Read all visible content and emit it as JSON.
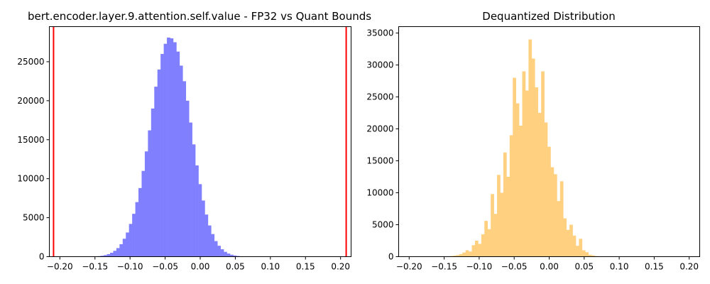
{
  "chart_data": [
    {
      "type": "histogram",
      "title": "bert.encoder.layer.9.attention.self.value - FP32 vs Quant Bounds",
      "xlabel": "",
      "ylabel": "",
      "xlim": [
        -0.215,
        0.215
      ],
      "ylim": [
        0,
        29500
      ],
      "xticks": [
        -0.2,
        -0.15,
        -0.1,
        -0.05,
        0.0,
        0.05,
        0.1,
        0.15,
        0.2
      ],
      "xtick_labels": [
        "−0.20",
        "−0.15",
        "−0.10",
        "−0.05",
        "0.00",
        "0.05",
        "0.10",
        "0.15",
        "0.20"
      ],
      "yticks": [
        0,
        5000,
        10000,
        15000,
        20000,
        25000
      ],
      "ytick_labels": [
        "0",
        "5000",
        "10000",
        "15000",
        "20000",
        "25000"
      ],
      "bar_color": "#8080ff",
      "bin_start": -0.16,
      "bin_width": 0.0045,
      "values": [
        10,
        20,
        40,
        70,
        120,
        200,
        320,
        500,
        750,
        1100,
        1600,
        2300,
        3100,
        4200,
        5500,
        7000,
        8800,
        11000,
        13500,
        16200,
        19000,
        21800,
        24000,
        26000,
        27300,
        28100,
        28000,
        27500,
        26300,
        24500,
        22500,
        20000,
        17200,
        14400,
        11700,
        9300,
        7200,
        5400,
        4000,
        2900,
        2000,
        1400,
        950,
        620,
        400,
        250,
        150,
        90,
        50,
        30,
        15,
        8
      ],
      "bound_lines": [
        -0.209,
        0.208
      ],
      "bound_color": "#ff0000"
    },
    {
      "type": "histogram",
      "title": "Dequantized Distribution",
      "xlabel": "",
      "ylabel": "",
      "xlim": [
        -0.215,
        0.215
      ],
      "ylim": [
        0,
        36000
      ],
      "xticks": [
        -0.2,
        -0.15,
        -0.1,
        -0.05,
        0.0,
        0.05,
        0.1,
        0.15,
        0.2
      ],
      "xtick_labels": [
        "−0.20",
        "−0.15",
        "−0.10",
        "−0.05",
        "0.00",
        "0.05",
        "0.10",
        "0.15",
        "0.20"
      ],
      "yticks": [
        0,
        5000,
        10000,
        15000,
        20000,
        25000,
        30000,
        35000
      ],
      "ytick_labels": [
        "0",
        "5000",
        "10000",
        "15000",
        "20000",
        "25000",
        "30000",
        "35000"
      ],
      "bar_color": "#ffd080",
      "bin_start": -0.16,
      "bin_width": 0.0045,
      "values": [
        10,
        20,
        40,
        60,
        100,
        160,
        250,
        400,
        650,
        1000,
        800,
        1800,
        2500,
        2000,
        3500,
        5600,
        4300,
        9800,
        6700,
        12800,
        10000,
        16300,
        12500,
        19000,
        28000,
        24000,
        20500,
        29000,
        26000,
        34000,
        31000,
        26500,
        22500,
        29000,
        21000,
        17200,
        14000,
        12900,
        8700,
        11800,
        6000,
        4200,
        5000,
        3300,
        1700,
        2800,
        1000,
        700,
        300,
        200,
        100,
        50
      ]
    }
  ]
}
